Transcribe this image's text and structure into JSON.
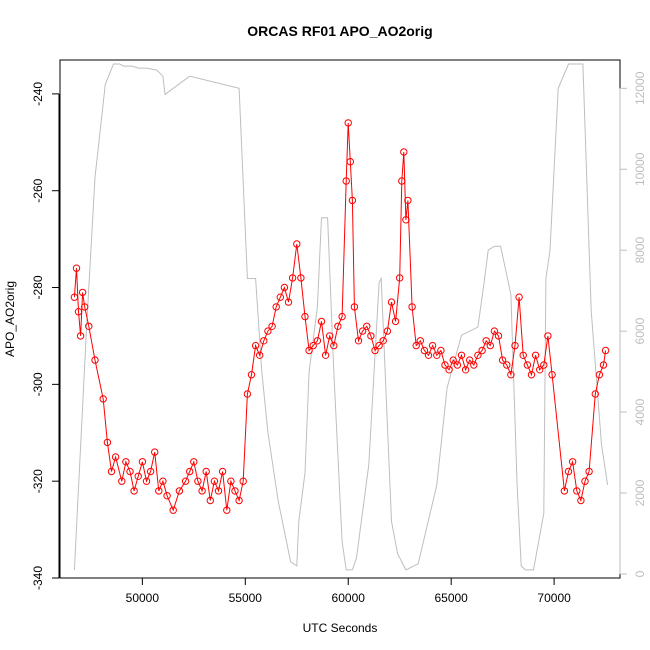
{
  "chart_data": {
    "type": "scatter",
    "title": "ORCAS RF01 APO_AO2orig",
    "xlabel": "UTC Seconds",
    "ylabel": "APO_AO2orig",
    "xlim": [
      46000,
      73200
    ],
    "ylim": [
      -340,
      -233
    ],
    "y2lim": [
      -100,
      12700
    ],
    "x_ticks": [
      50000,
      55000,
      60000,
      65000,
      70000
    ],
    "x_tick_labels": [
      "50000",
      "55000",
      "60000",
      "65000",
      "70000"
    ],
    "y_ticks": [
      -340,
      -320,
      -300,
      -280,
      -260,
      -240
    ],
    "y_tick_labels": [
      "-340",
      "-320",
      "-300",
      "-280",
      "-260",
      "-240"
    ],
    "y2_ticks": [
      0,
      2000,
      4000,
      6000,
      8000,
      10000,
      12000
    ],
    "y2_tick_labels": [
      "0",
      "2000",
      "4000",
      "6000",
      "8000",
      "10000",
      "12000"
    ],
    "grid": false,
    "legend": "none",
    "colors": {
      "apo": "#ff0000",
      "altitude": "#bebebe"
    },
    "series": [
      {
        "axis": "left",
        "style": "points-with-lines",
        "x": [
          46700,
          46800,
          46900,
          47000,
          47100,
          47200,
          47400,
          47700,
          48100,
          48300,
          48500,
          48700,
          49000,
          49200,
          49400,
          49600,
          49800,
          50000,
          50200,
          50400,
          50600,
          50800,
          51000,
          51200,
          51500,
          51800,
          52100,
          52300,
          52500,
          52700,
          52900,
          53100,
          53300,
          53500,
          53700,
          53900,
          54100,
          54300,
          54500,
          54700,
          54900,
          55100,
          55300,
          55500,
          55700,
          55900,
          56100,
          56300,
          56500,
          56700,
          56900,
          57100,
          57300,
          57500,
          57700,
          57900,
          58100,
          58300,
          58500,
          58700,
          58900,
          59100,
          59300,
          59500,
          59700,
          59900,
          60000,
          60100,
          60200,
          60300,
          60500,
          60700,
          60900,
          61100,
          61300,
          61500,
          61700,
          61900,
          62100,
          62300,
          62500,
          62600,
          62700,
          62800,
          62900,
          63100,
          63300,
          63500,
          63700,
          63900,
          64100,
          64300,
          64500,
          64700,
          64900,
          65100,
          65300,
          65500,
          65700,
          65900,
          66100,
          66300,
          66500,
          66700,
          66900,
          67100,
          67300,
          67500,
          67700,
          67900,
          68100,
          68300,
          68500,
          68700,
          68900,
          69100,
          69300,
          69500,
          69700,
          69900,
          70500,
          70700,
          70900,
          71100,
          71300,
          71500,
          71700,
          72000,
          72200,
          72400,
          72500
        ],
        "y": [
          -282,
          -276,
          -285,
          -290,
          -281,
          -284,
          -288,
          -295,
          -303,
          -312,
          -318,
          -315,
          -320,
          -316,
          -318,
          -322,
          -319,
          -316,
          -320,
          -318,
          -314,
          -322,
          -320,
          -323,
          -326,
          -322,
          -320,
          -318,
          -316,
          -320,
          -322,
          -318,
          -324,
          -320,
          -322,
          -318,
          -326,
          -320,
          -322,
          -324,
          -320,
          -302,
          -298,
          -292,
          -294,
          -291,
          -289,
          -288,
          -284,
          -282,
          -280,
          -283,
          -278,
          -271,
          -278,
          -286,
          -293,
          -292,
          -291,
          -287,
          -294,
          -290,
          -292,
          -288,
          -286,
          -258,
          -246,
          -254,
          -262,
          -284,
          -291,
          -289,
          -288,
          -290,
          -293,
          -292,
          -291,
          -289,
          -283,
          -287,
          -278,
          -258,
          -252,
          -266,
          -262,
          -284,
          -292,
          -291,
          -293,
          -294,
          -292,
          -294,
          -293,
          -296,
          -297,
          -295,
          -296,
          -294,
          -297,
          -295,
          -296,
          -294,
          -293,
          -291,
          -292,
          -289,
          -290,
          -295,
          -296,
          -298,
          -292,
          -282,
          -294,
          -296,
          -298,
          -294,
          -297,
          -296,
          -290,
          -298,
          -322,
          -318,
          -316,
          -322,
          -324,
          -320,
          -318,
          -302,
          -298,
          -296,
          -293
        ]
      },
      {
        "axis": "right",
        "style": "line",
        "x": [
          46700,
          47300,
          47700,
          48200,
          48600,
          48900,
          49100,
          49500,
          49800,
          50200,
          50700,
          51000,
          51100,
          52300,
          54700,
          55100,
          55500,
          55800,
          56100,
          56600,
          57000,
          57200,
          57500,
          57600,
          57900,
          58100,
          58500,
          58700,
          59000,
          59300,
          59700,
          59900,
          60000,
          60200,
          60400,
          61000,
          61500,
          61600,
          62100,
          62400,
          62800,
          63400,
          64300,
          64800,
          65500,
          66300,
          66600,
          66800,
          67100,
          67400,
          67900,
          68200,
          68400,
          68600,
          69000,
          69500,
          69600,
          69800,
          70200,
          70700,
          71000,
          71400,
          71800,
          72300,
          72600
        ],
        "y": [
          100,
          6200,
          9800,
          12100,
          12600,
          12600,
          12550,
          12550,
          12500,
          12500,
          12450,
          12300,
          11850,
          12300,
          12000,
          7300,
          7300,
          5000,
          3500,
          1800,
          800,
          300,
          200,
          1300,
          2500,
          5000,
          6600,
          8800,
          8800,
          5000,
          800,
          100,
          100,
          100,
          400,
          2700,
          7200,
          7300,
          1300,
          500,
          100,
          250,
          2200,
          4600,
          5900,
          6100,
          7200,
          8000,
          8100,
          8100,
          6900,
          2200,
          200,
          100,
          100,
          1500,
          7300,
          8000,
          12000,
          12600,
          12600,
          12600,
          6500,
          3200,
          2200
        ]
      }
    ]
  }
}
